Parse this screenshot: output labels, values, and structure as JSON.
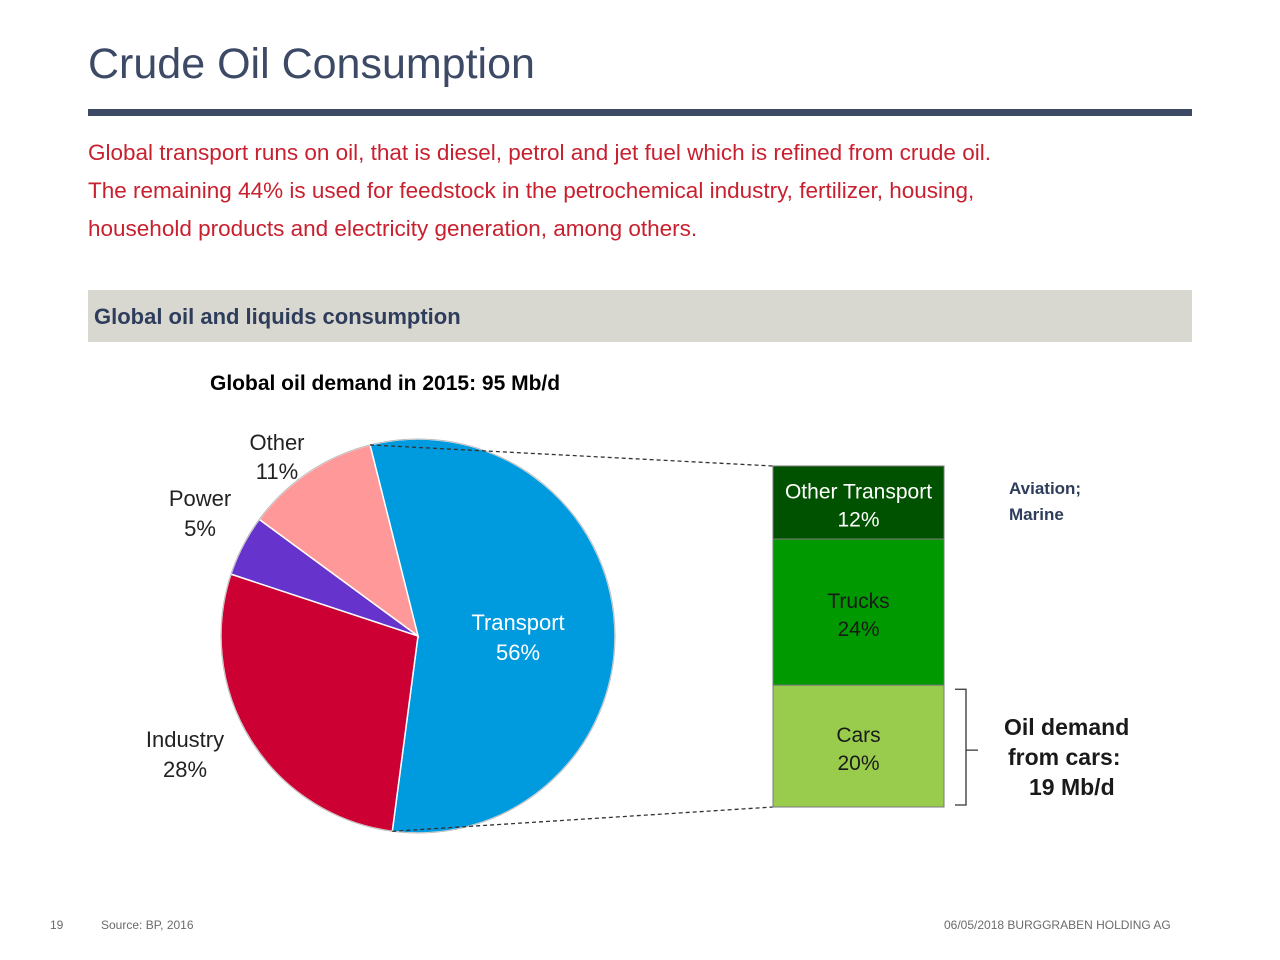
{
  "page": {
    "title": "Crude Oil Consumption",
    "intro_lines": [
      "Global transport runs on oil, that is diesel, petrol and jet fuel which is refined from crude oil.",
      "The remaining 44% is used for feedstock in the petrochemical industry, fertilizer, housing,",
      "household products and electricity generation, among others."
    ],
    "section_title": "Global oil and liquids consumption"
  },
  "chart_data": {
    "type": "pie",
    "title": "Global oil demand in 2015: 95 Mb/d",
    "slices": [
      {
        "name": "Transport",
        "value": 56,
        "label": "56%",
        "color": "#009ade"
      },
      {
        "name": "Industry",
        "value": 28,
        "label": "28%",
        "color": "#cc0033"
      },
      {
        "name": "Power",
        "value": 5,
        "label": "5%",
        "color": "#6633cc"
      },
      {
        "name": "Other",
        "value": 11,
        "label": "11%",
        "color": "#ff9999"
      }
    ],
    "breakdown": {
      "of": "Transport",
      "type": "stacked_bar",
      "segments": [
        {
          "name": "Other Transport",
          "value": 12,
          "label": "12%",
          "color": "#005200"
        },
        {
          "name": "Trucks",
          "value": 24,
          "label": "24%",
          "color": "#009900"
        },
        {
          "name": "Cars",
          "value": 20,
          "label": "20%",
          "color": "#99cc4d"
        }
      ]
    },
    "annotations": {
      "other_transport_note": [
        "Aviation;",
        "Marine"
      ],
      "cars_note": [
        "Oil demand",
        "from cars:",
        "19 Mb/d"
      ]
    }
  },
  "footer": {
    "page_number": "19",
    "source": "Source: BP,  2016",
    "right": "06/05/2018  BURGGRABEN HOLDING AG"
  }
}
